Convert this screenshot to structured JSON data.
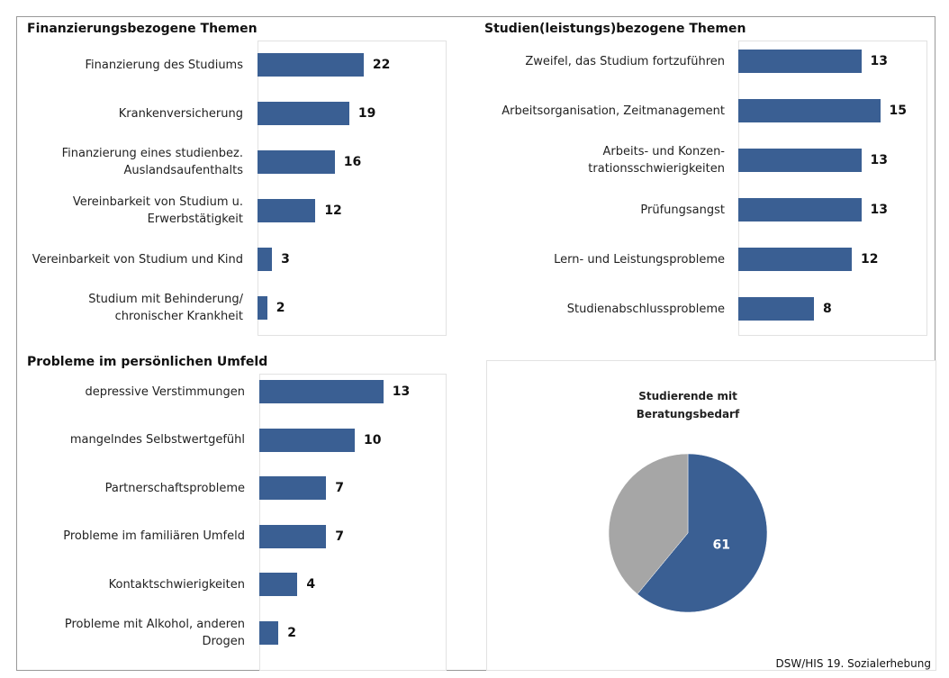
{
  "chart_data": [
    {
      "type": "bar",
      "title": "Finanzierungsbezogene Themen",
      "color": "#3a5f93",
      "categories": [
        "Finanzierung des Studiums",
        "Krankenversicherung",
        "Finanzierung eines studienbez. Auslandsaufenthalts",
        "Vereinbarkeit von Studium u. Erwerbstätigkeit",
        "Vereinbarkeit von Studium und Kind",
        "Studium mit Behinderung/ chronischer Krankheit"
      ],
      "values": [
        22,
        19,
        16,
        12,
        3,
        2
      ]
    },
    {
      "type": "bar",
      "title": "Studien(leistungs)bezogene Themen",
      "color": "#3a5f93",
      "categories": [
        "Zweifel, das Studium fortzuführen",
        "Arbeitsorganisation, Zeitmanagement",
        "Arbeits- und Konzen-trationsschwierigkeiten",
        "Prüfungsangst",
        "Lern- und Leistungsprobleme",
        "Studienabschlussprobleme"
      ],
      "values": [
        13,
        15,
        13,
        13,
        12,
        8
      ]
    },
    {
      "type": "bar",
      "title": "Probleme im persönlichen Umfeld",
      "color": "#3a5f93",
      "categories": [
        "depressive Verstimmungen",
        "mangelndes Selbstwertgefühl",
        "Partnerschaftsprobleme",
        "Probleme im familiären Umfeld",
        "Kontaktschwierigkeiten",
        "Probleme mit Alkohol, anderen Drogen"
      ],
      "values": [
        13,
        10,
        7,
        7,
        4,
        2
      ]
    },
    {
      "type": "pie",
      "title": "Studierende mit Beratungsbedarf",
      "values": [
        61,
        39
      ],
      "value_labels": [
        "61",
        null
      ],
      "colors": [
        "#3a5f93",
        "#a6a6a6"
      ]
    }
  ],
  "source": "DSW/HIS 19. Sozialerhebung"
}
